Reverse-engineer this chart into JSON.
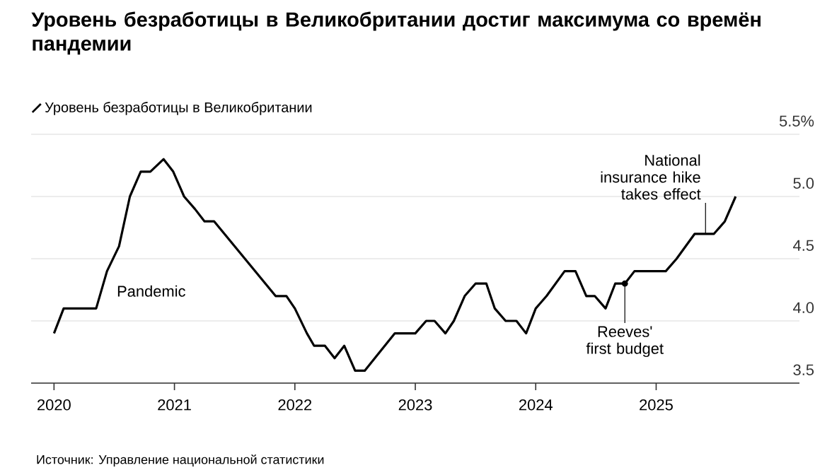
{
  "chart_data": {
    "type": "line",
    "title": "Уровень безработицы в Великобритании достиг максимума со времён пандемии",
    "series": [
      {
        "name": "Уровень безработицы в Великобритании",
        "color": "#000000",
        "x": [
          2020.0,
          2020.08,
          2020.35,
          2020.44,
          2020.54,
          2020.63,
          2020.72,
          2020.8,
          2020.91,
          2020.99,
          2021.08,
          2021.17,
          2021.25,
          2021.33,
          2021.84,
          2021.93,
          2022.0,
          2022.1,
          2022.16,
          2022.25,
          2022.33,
          2022.41,
          2022.5,
          2022.58,
          2022.83,
          2023.0,
          2023.09,
          2023.16,
          2023.25,
          2023.32,
          2023.41,
          2023.5,
          2023.59,
          2023.66,
          2023.75,
          2023.84,
          2023.92,
          2024.0,
          2024.09,
          2024.24,
          2024.33,
          2024.42,
          2024.49,
          2024.58,
          2024.66,
          2024.74,
          2024.82,
          2025.08,
          2025.17,
          2025.32,
          2025.48,
          2025.57,
          2025.66
        ],
        "values": [
          3.9,
          4.1,
          4.1,
          4.4,
          4.6,
          5.0,
          5.2,
          5.2,
          5.3,
          5.2,
          5.0,
          4.9,
          4.8,
          4.8,
          4.2,
          4.2,
          4.1,
          3.9,
          3.8,
          3.8,
          3.7,
          3.8,
          3.6,
          3.6,
          3.9,
          3.9,
          4.0,
          4.0,
          3.9,
          4.0,
          4.2,
          4.3,
          4.3,
          4.1,
          4.0,
          4.0,
          3.9,
          4.1,
          4.2,
          4.4,
          4.4,
          4.2,
          4.2,
          4.1,
          4.3,
          4.3,
          4.4,
          4.4,
          4.5,
          4.7,
          4.7,
          4.8,
          5.0
        ]
      }
    ],
    "xlim": [
      2019.81,
      2026.19
    ],
    "ylim": [
      3.5,
      5.5
    ],
    "xticks": [
      2020,
      2021,
      2022,
      2023,
      2024,
      2025
    ],
    "yticks": [
      {
        "value": 3.5,
        "label": "3.5"
      },
      {
        "value": 4.0,
        "label": "4.0"
      },
      {
        "value": 4.5,
        "label": "4.5"
      },
      {
        "value": 5.0,
        "label": "5.0"
      },
      {
        "value": 5.5,
        "label": "5.5%"
      }
    ],
    "grid": "y",
    "legend": "top left",
    "marker": "none",
    "line_style": "solid",
    "annotations": [
      "Pandemic",
      {
        "text": "Reeves' first budget",
        "x": 2024.74,
        "y": 4.3
      },
      {
        "text": "National insurance hike takes effect",
        "x": 2025.41,
        "y": 4.7
      },
      "Источник: Управление национальной статистики"
    ]
  }
}
